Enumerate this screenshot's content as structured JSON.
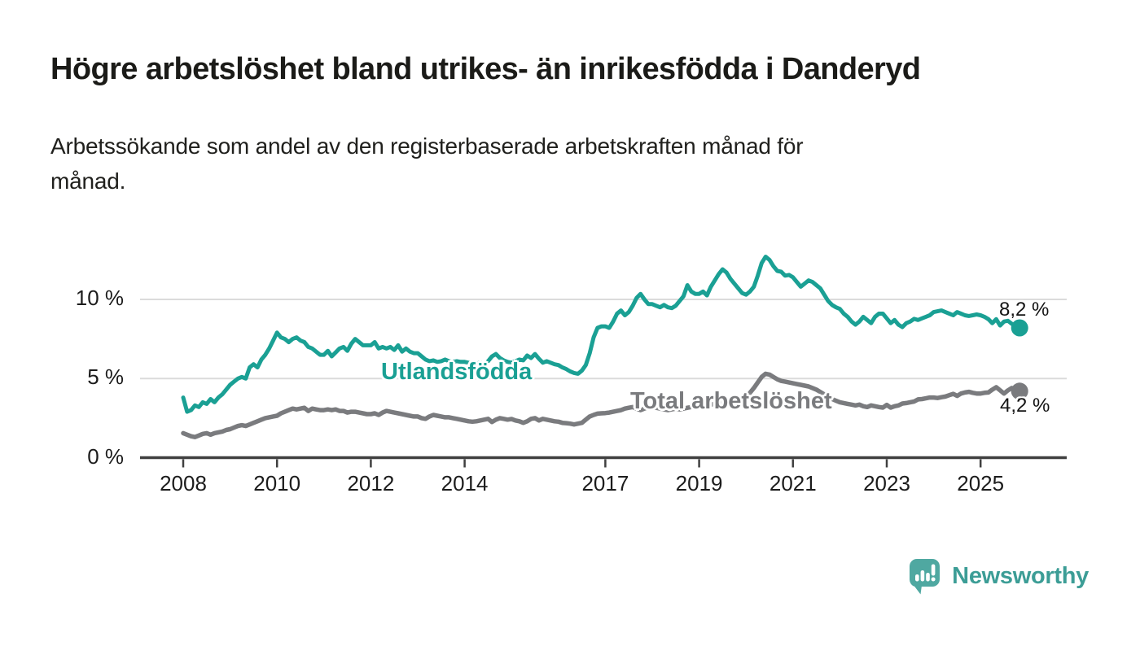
{
  "header": {
    "title": "Högre arbetslöshet bland utrikes- än inrikesfödda i Danderyd",
    "subtitle_lines": [
      "Arbetssökande som andel av den registerbaserade arbetskraften månad för",
      "månad."
    ]
  },
  "chart_data": {
    "type": "line",
    "title": "Högre arbetslöshet bland utrikes- än inrikesfödda i Danderyd",
    "subtitle": "Arbetssökande som andel av den registerbaserade arbetskraften månad för månad.",
    "unit": "%",
    "x_start_year": 2008,
    "points_per_year": 12,
    "x_end_label": "2025",
    "ylim": [
      0,
      13
    ],
    "grid": "horizontal",
    "x_ticks": [
      {
        "label": "2008",
        "year": 2008
      },
      {
        "label": "2010",
        "year": 2010
      },
      {
        "label": "2012",
        "year": 2012
      },
      {
        "label": "2014",
        "year": 2014
      },
      {
        "label": "2017",
        "year": 2017
      },
      {
        "label": "2019",
        "year": 2019
      },
      {
        "label": "2021",
        "year": 2021
      },
      {
        "label": "2023",
        "year": 2023
      },
      {
        "label": "2025",
        "year": 2025
      }
    ],
    "y_ticks": [
      {
        "label": "0 %",
        "value": 0
      },
      {
        "label": "5 %",
        "value": 5
      },
      {
        "label": "10 %",
        "value": 10
      }
    ],
    "series": [
      {
        "name": "Utlandsfödda",
        "color": "#1aa094",
        "end_label": "8,2 %",
        "end_value": 8.2,
        "values": [
          3.8,
          2.9,
          3.0,
          3.3,
          3.2,
          3.5,
          3.4,
          3.7,
          3.5,
          3.8,
          4.0,
          4.3,
          4.6,
          4.8,
          5.0,
          5.1,
          5.0,
          5.7,
          5.9,
          5.7,
          6.2,
          6.5,
          6.9,
          7.4,
          7.9,
          7.6,
          7.5,
          7.3,
          7.5,
          7.6,
          7.4,
          7.3,
          7.0,
          6.9,
          6.7,
          6.5,
          6.5,
          6.75,
          6.4,
          6.65,
          6.9,
          7.0,
          6.75,
          7.2,
          7.5,
          7.3,
          7.1,
          7.1,
          7.1,
          7.3,
          6.9,
          7.0,
          6.9,
          7.0,
          6.8,
          7.1,
          6.7,
          6.9,
          6.7,
          6.6,
          6.6,
          6.4,
          6.2,
          6.1,
          6.15,
          6.05,
          6.1,
          6.2,
          6.1,
          6.05,
          6.1,
          6.05,
          6.05,
          6.0,
          5.95,
          5.95,
          6.0,
          5.9,
          6.1,
          6.4,
          6.55,
          6.3,
          6.15,
          6.05,
          6.0,
          6.1,
          6.2,
          6.15,
          6.45,
          6.3,
          6.55,
          6.25,
          6.0,
          6.1,
          6.0,
          5.9,
          5.85,
          5.7,
          5.6,
          5.45,
          5.35,
          5.3,
          5.5,
          5.85,
          6.6,
          7.6,
          8.2,
          8.3,
          8.3,
          8.2,
          8.6,
          9.1,
          9.3,
          9.0,
          9.2,
          9.6,
          10.1,
          10.35,
          10.0,
          9.7,
          9.7,
          9.6,
          9.5,
          9.65,
          9.5,
          9.45,
          9.6,
          9.9,
          10.2,
          10.9,
          10.5,
          10.35,
          10.35,
          10.5,
          10.25,
          10.8,
          11.2,
          11.6,
          11.9,
          11.7,
          11.3,
          11.0,
          10.7,
          10.4,
          10.3,
          10.5,
          10.8,
          11.5,
          12.3,
          12.7,
          12.5,
          12.1,
          11.8,
          11.75,
          11.5,
          11.55,
          11.4,
          11.1,
          10.8,
          11.0,
          11.2,
          11.1,
          10.9,
          10.7,
          10.3,
          9.9,
          9.65,
          9.5,
          9.4,
          9.1,
          8.9,
          8.6,
          8.4,
          8.6,
          8.9,
          8.7,
          8.5,
          8.9,
          9.1,
          9.1,
          8.8,
          8.5,
          8.7,
          8.4,
          8.25,
          8.5,
          8.6,
          8.77,
          8.7,
          8.8,
          8.9,
          9.0,
          9.2,
          9.25,
          9.3,
          9.2,
          9.1,
          9.0,
          9.2,
          9.1,
          9.0,
          8.95,
          9.0,
          9.05,
          9.0,
          8.9,
          8.75,
          8.5,
          8.75,
          8.35,
          8.6,
          8.65,
          8.45,
          8.35,
          8.2
        ]
      },
      {
        "name": "Total arbetslöshet",
        "color": "#7a7b7e",
        "end_label": "4,2 %",
        "end_value": 4.2,
        "values": [
          1.55,
          1.45,
          1.35,
          1.3,
          1.4,
          1.5,
          1.55,
          1.45,
          1.55,
          1.6,
          1.65,
          1.75,
          1.8,
          1.9,
          2.0,
          2.05,
          2.0,
          2.1,
          2.2,
          2.3,
          2.4,
          2.5,
          2.55,
          2.6,
          2.65,
          2.8,
          2.9,
          3.0,
          3.1,
          3.05,
          3.1,
          3.15,
          2.95,
          3.1,
          3.05,
          3.0,
          3.0,
          3.05,
          3.0,
          3.05,
          2.95,
          2.95,
          2.85,
          2.9,
          2.9,
          2.85,
          2.8,
          2.75,
          2.75,
          2.8,
          2.7,
          2.85,
          2.95,
          2.9,
          2.85,
          2.8,
          2.75,
          2.7,
          2.65,
          2.6,
          2.6,
          2.5,
          2.45,
          2.6,
          2.7,
          2.65,
          2.6,
          2.55,
          2.55,
          2.5,
          2.45,
          2.4,
          2.35,
          2.3,
          2.27,
          2.3,
          2.35,
          2.4,
          2.45,
          2.25,
          2.4,
          2.5,
          2.45,
          2.4,
          2.44,
          2.35,
          2.3,
          2.2,
          2.3,
          2.45,
          2.5,
          2.35,
          2.45,
          2.4,
          2.35,
          2.3,
          2.27,
          2.2,
          2.18,
          2.15,
          2.1,
          2.15,
          2.2,
          2.4,
          2.6,
          2.7,
          2.78,
          2.8,
          2.82,
          2.85,
          2.9,
          2.95,
          3.0,
          3.1,
          3.15,
          3.2,
          3.1,
          3.0,
          3.1,
          3.2,
          3.2,
          3.15,
          3.1,
          3.05,
          3.0,
          3.05,
          3.1,
          3.05,
          3.1,
          3.15,
          3.2,
          3.25,
          3.3,
          3.25,
          3.3,
          3.35,
          3.4,
          3.45,
          3.5,
          3.45,
          3.5,
          3.55,
          3.6,
          3.7,
          3.9,
          4.1,
          4.4,
          4.75,
          5.1,
          5.3,
          5.25,
          5.1,
          4.95,
          4.85,
          4.8,
          4.75,
          4.7,
          4.65,
          4.6,
          4.55,
          4.5,
          4.4,
          4.3,
          4.15,
          4.0,
          3.85,
          3.7,
          3.6,
          3.5,
          3.45,
          3.4,
          3.35,
          3.3,
          3.35,
          3.25,
          3.2,
          3.3,
          3.25,
          3.2,
          3.16,
          3.33,
          3.16,
          3.25,
          3.3,
          3.42,
          3.45,
          3.5,
          3.55,
          3.68,
          3.7,
          3.75,
          3.8,
          3.8,
          3.77,
          3.82,
          3.86,
          3.95,
          4.03,
          3.9,
          4.05,
          4.12,
          4.16,
          4.1,
          4.05,
          4.05,
          4.1,
          4.12,
          4.3,
          4.45,
          4.25,
          4.05,
          4.25,
          4.4,
          4.3,
          4.2
        ]
      }
    ]
  },
  "footer": {
    "brand": "Newsworthy"
  },
  "colors": {
    "background": "#ffffff",
    "title_text": "#1b1b18",
    "subtitle_text": "#20201d",
    "axis": "#404040",
    "gridline": "#dbdbdb",
    "tick_text": "#1c1c1c",
    "teal": "#1aa094",
    "gray": "#7a7b7e",
    "logo_icon": "#4fa8a1",
    "logo_text": "#3c9d96"
  }
}
